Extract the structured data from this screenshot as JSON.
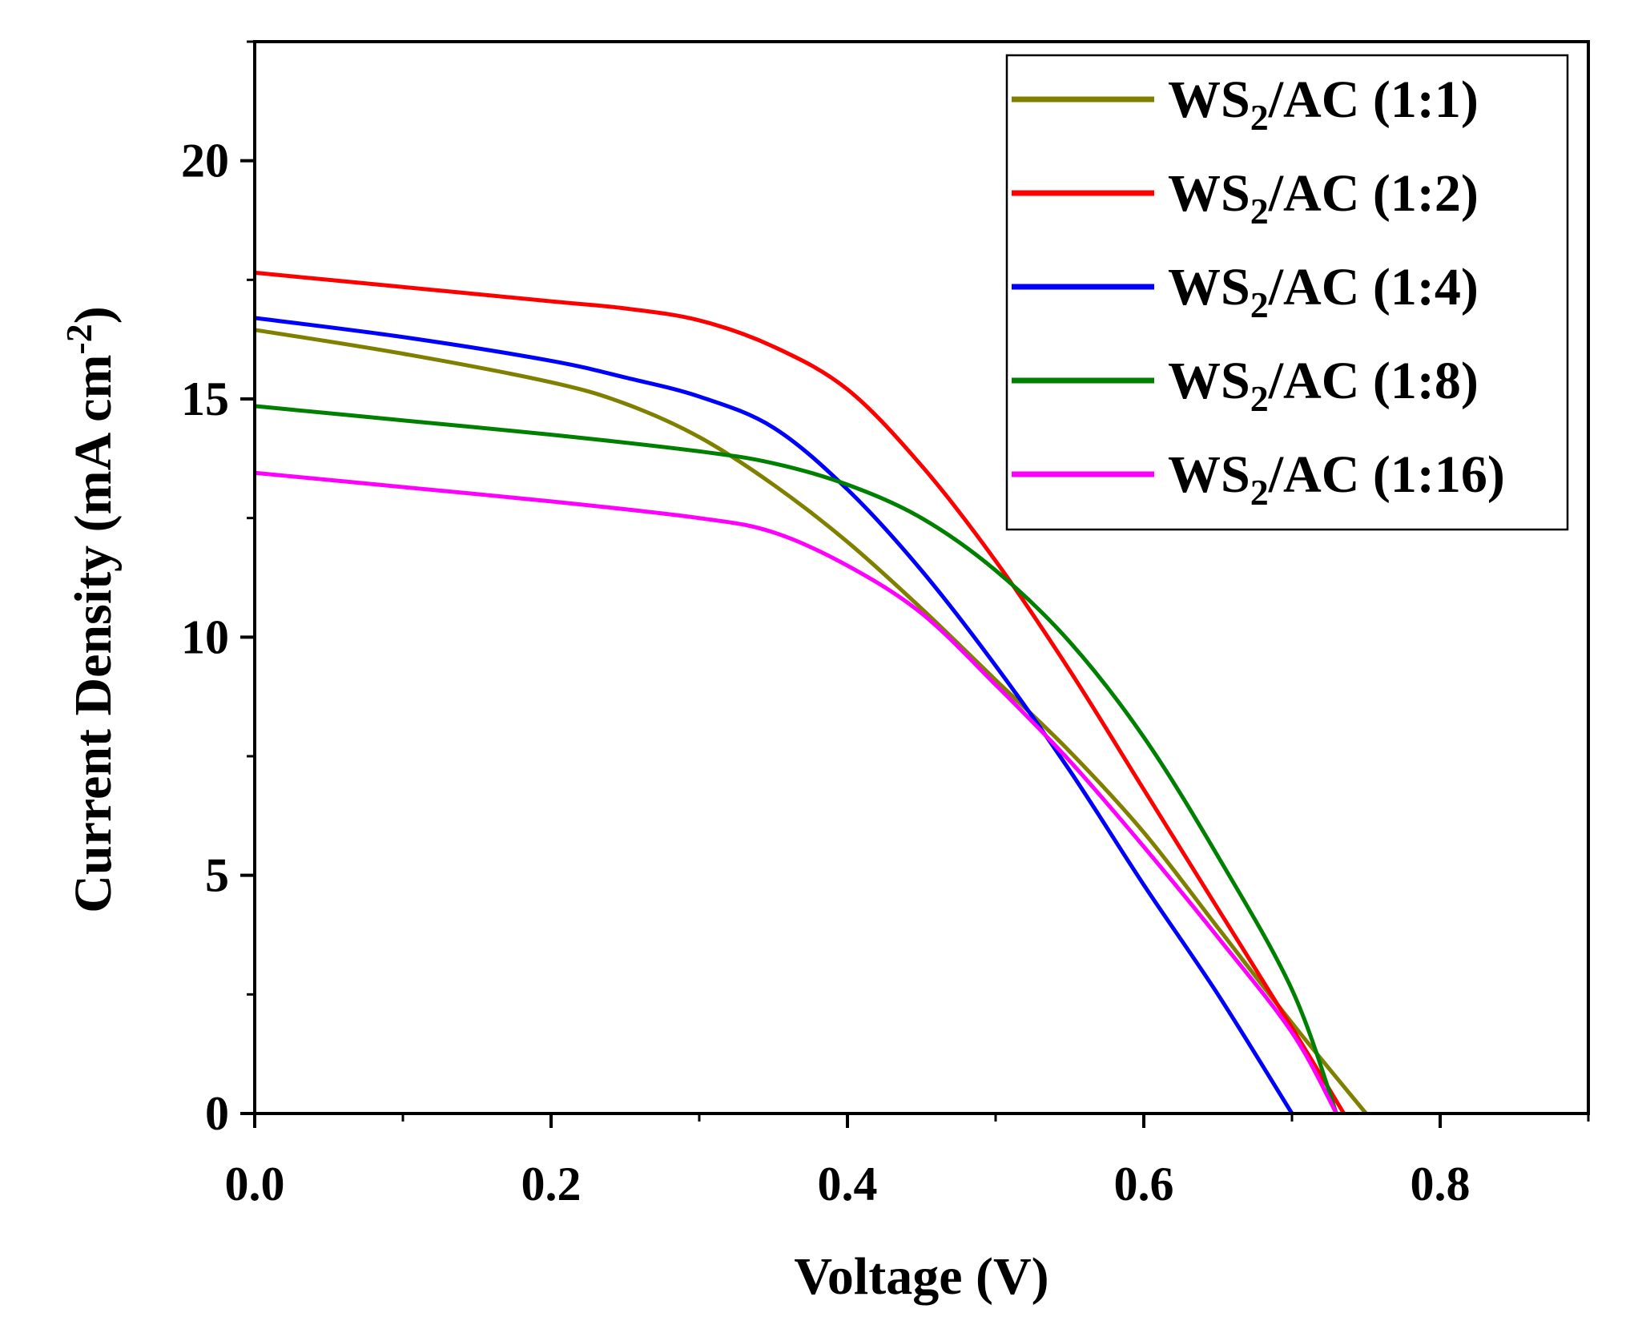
{
  "chart_data": {
    "type": "line",
    "xlabel": "Voltage (V)",
    "ylabel": {
      "main": "Current Density (mA cm",
      "sup": "-2",
      "close": ")"
    },
    "xlim": [
      0,
      0.9
    ],
    "ylim": [
      0,
      22.5
    ],
    "x_ticks": [
      0.0,
      0.2,
      0.4,
      0.6,
      0.8
    ],
    "x_tick_labels": [
      "0.0",
      "0.2",
      "0.4",
      "0.6",
      "0.8"
    ],
    "y_ticks": [
      0,
      5,
      10,
      15,
      20
    ],
    "y_tick_labels": [
      "0",
      "5",
      "10",
      "15",
      "20"
    ],
    "legend_position": "top-right",
    "grid": false,
    "series": [
      {
        "name": "WS2/AC (1:1)",
        "label": {
          "pre": "WS",
          "sub": "2",
          "post": "/AC (1:1)"
        },
        "color": "#808000",
        "points": [
          [
            0,
            16.45
          ],
          [
            0.1,
            15.95
          ],
          [
            0.2,
            15.35
          ],
          [
            0.25,
            14.9
          ],
          [
            0.3,
            14.2
          ],
          [
            0.35,
            13.2
          ],
          [
            0.4,
            12.0
          ],
          [
            0.45,
            10.6
          ],
          [
            0.5,
            9.1
          ],
          [
            0.55,
            7.6
          ],
          [
            0.6,
            5.9
          ],
          [
            0.65,
            3.9
          ],
          [
            0.7,
            1.9
          ],
          [
            0.75,
            0
          ]
        ]
      },
      {
        "name": "WS2/AC (1:2)",
        "label": {
          "pre": "WS",
          "sub": "2",
          "post": "/AC (1:2)"
        },
        "color": "#ff0000",
        "points": [
          [
            0,
            17.65
          ],
          [
            0.1,
            17.35
          ],
          [
            0.2,
            17.05
          ],
          [
            0.25,
            16.9
          ],
          [
            0.3,
            16.65
          ],
          [
            0.35,
            16.1
          ],
          [
            0.4,
            15.2
          ],
          [
            0.45,
            13.6
          ],
          [
            0.5,
            11.6
          ],
          [
            0.55,
            9.3
          ],
          [
            0.6,
            6.8
          ],
          [
            0.65,
            4.3
          ],
          [
            0.7,
            1.8
          ],
          [
            0.735,
            0
          ]
        ]
      },
      {
        "name": "WS2/AC (1:4)",
        "label": {
          "pre": "WS",
          "sub": "2",
          "post": "/AC (1:4)"
        },
        "color": "#0000ff",
        "points": [
          [
            0,
            16.7
          ],
          [
            0.1,
            16.3
          ],
          [
            0.2,
            15.8
          ],
          [
            0.25,
            15.45
          ],
          [
            0.3,
            15.05
          ],
          [
            0.35,
            14.4
          ],
          [
            0.4,
            13.1
          ],
          [
            0.45,
            11.4
          ],
          [
            0.5,
            9.4
          ],
          [
            0.55,
            7.2
          ],
          [
            0.6,
            4.8
          ],
          [
            0.65,
            2.5
          ],
          [
            0.7,
            0
          ]
        ]
      },
      {
        "name": "WS2/AC (1:8)",
        "label": {
          "pre": "WS",
          "sub": "2",
          "post": "/AC (1:8)"
        },
        "color": "#008000",
        "points": [
          [
            0,
            14.85
          ],
          [
            0.1,
            14.55
          ],
          [
            0.2,
            14.25
          ],
          [
            0.3,
            13.9
          ],
          [
            0.35,
            13.65
          ],
          [
            0.4,
            13.2
          ],
          [
            0.45,
            12.5
          ],
          [
            0.5,
            11.4
          ],
          [
            0.55,
            9.9
          ],
          [
            0.6,
            7.9
          ],
          [
            0.65,
            5.4
          ],
          [
            0.7,
            2.6
          ],
          [
            0.73,
            0
          ]
        ]
      },
      {
        "name": "WS2/AC (1:16)",
        "label": {
          "pre": "WS",
          "sub": "2",
          "post": "/AC (1:16)"
        },
        "color": "#ff00ff",
        "points": [
          [
            0,
            13.45
          ],
          [
            0.1,
            13.15
          ],
          [
            0.2,
            12.85
          ],
          [
            0.3,
            12.5
          ],
          [
            0.35,
            12.2
          ],
          [
            0.4,
            11.5
          ],
          [
            0.45,
            10.5
          ],
          [
            0.5,
            9.0
          ],
          [
            0.55,
            7.4
          ],
          [
            0.6,
            5.6
          ],
          [
            0.65,
            3.7
          ],
          [
            0.7,
            1.7
          ],
          [
            0.73,
            0
          ]
        ]
      }
    ]
  }
}
